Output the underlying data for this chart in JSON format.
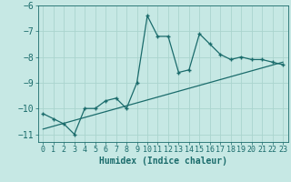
{
  "xlabel": "Humidex (Indice chaleur)",
  "ylabel": "",
  "bg_color": "#c6e8e4",
  "line_color": "#1a6b6b",
  "grid_color": "#aad4ce",
  "xlim": [
    -0.5,
    23.5
  ],
  "ylim": [
    -11.3,
    -6.2
  ],
  "yticks": [
    -11,
    -10,
    -9,
    -8,
    -7,
    -6
  ],
  "xticks": [
    0,
    1,
    2,
    3,
    4,
    5,
    6,
    7,
    8,
    9,
    10,
    11,
    12,
    13,
    14,
    15,
    16,
    17,
    18,
    19,
    20,
    21,
    22,
    23
  ],
  "data_x": [
    0,
    1,
    2,
    3,
    4,
    5,
    6,
    7,
    8,
    9,
    10,
    11,
    12,
    13,
    14,
    15,
    16,
    17,
    18,
    19,
    20,
    21,
    22,
    23
  ],
  "data_y": [
    -10.2,
    -10.4,
    -10.6,
    -11.0,
    -10.0,
    -10.0,
    -9.7,
    -9.6,
    -10.0,
    -9.0,
    -6.4,
    -7.2,
    -7.2,
    -8.6,
    -8.5,
    -7.1,
    -7.5,
    -7.9,
    -8.1,
    -8.0,
    -8.1,
    -8.1,
    -8.2,
    -8.3
  ],
  "trend_x": [
    0,
    23
  ],
  "trend_y": [
    -10.8,
    -8.2
  ],
  "marker_size": 3.5,
  "font_size_label": 7,
  "font_size_tick": 6
}
